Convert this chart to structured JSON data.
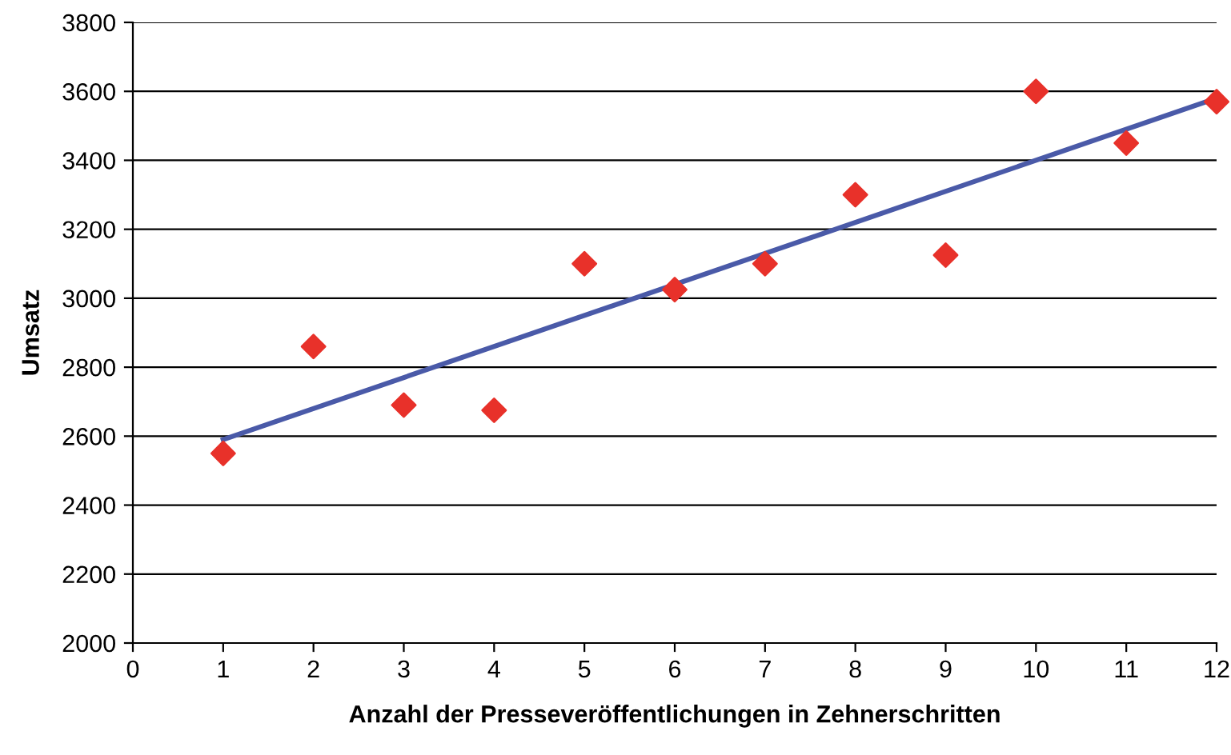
{
  "chart_data": {
    "type": "scatter",
    "xlabel": "Anzahl der Presseveröffentlichungen in Zehnerschritten",
    "ylabel": "Umsatz",
    "xlim": [
      0,
      12
    ],
    "xticks": [
      0,
      1,
      2,
      3,
      4,
      5,
      6,
      7,
      8,
      9,
      10,
      11,
      12
    ],
    "ylim": [
      2000,
      3800
    ],
    "yticks": [
      2000,
      2200,
      2400,
      2600,
      2800,
      3000,
      3200,
      3400,
      3600,
      3800
    ],
    "grid": "y",
    "legend": false,
    "marker": "diamond",
    "series": [
      {
        "color": "#e8312a",
        "x": [
          1,
          2,
          3,
          4,
          5,
          6,
          7,
          8,
          9,
          10,
          11,
          12
        ],
        "values": [
          2550,
          2860,
          2690,
          2675,
          3100,
          3025,
          3100,
          3300,
          3125,
          3600,
          3450,
          3570
        ]
      },
      {
        "type": "line",
        "color": "#4a5aa8",
        "line_style": "solid",
        "marker": "none",
        "x": [
          1,
          12
        ],
        "values": [
          2590,
          3580
        ]
      }
    ]
  }
}
